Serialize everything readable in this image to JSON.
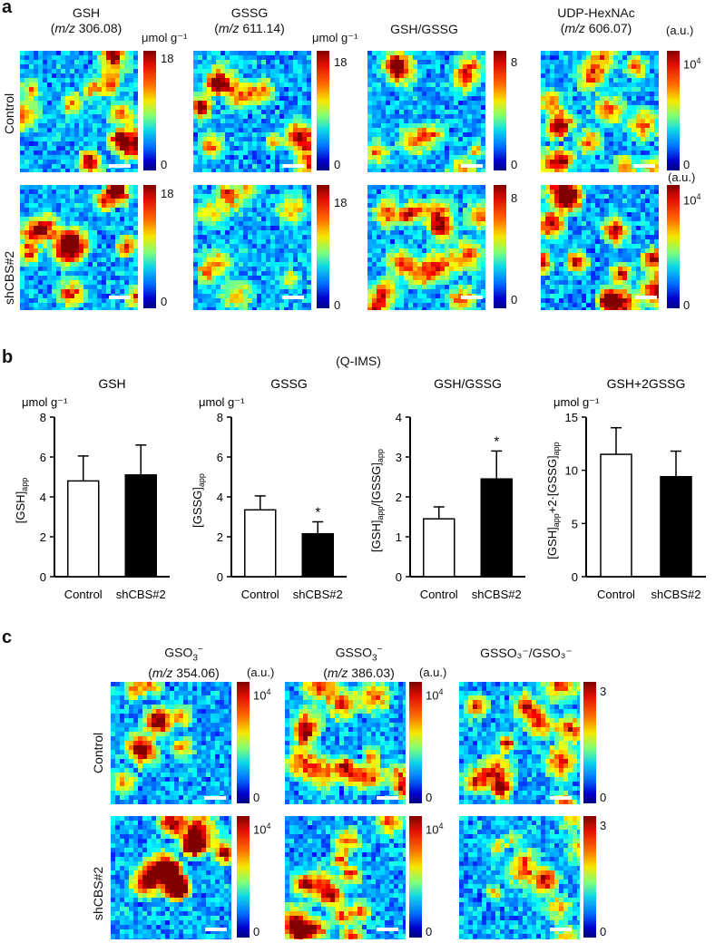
{
  "panel_a": {
    "letter": "a",
    "columns": [
      {
        "title": "GSH",
        "mz": "m/z",
        "mz_val": " 306.08)",
        "unit": "μmol g⁻¹",
        "max": "18",
        "min": "0"
      },
      {
        "title": "GSSG",
        "mz": "m/z",
        "mz_val": " 611.14)",
        "unit": "μmol g⁻¹",
        "max": "18",
        "min": "0"
      },
      {
        "title": "GSH/GSSG",
        "mz": "",
        "mz_val": "",
        "unit": "",
        "max": "8",
        "min": "0"
      },
      {
        "title": "UDP-HexNAc",
        "mz": "m/z",
        "mz_val": " 606.07)",
        "unit": "(a.u.)",
        "max_base": "10",
        "max_exp": "4",
        "min": "0"
      }
    ],
    "rows": [
      "Control",
      "shCBS#2"
    ]
  },
  "panel_b": {
    "letter": "b",
    "header": "(Q-IMS)",
    "xcats": [
      "Control",
      "shCBS#2"
    ]
  },
  "panel_c": {
    "letter": "c",
    "columns": [
      {
        "title_base": "GSO",
        "title_sub": "3",
        "title_sup": "−",
        "mz": "m/z",
        "mz_val": " 354.06)",
        "unit": "(a.u.)",
        "max_base": "10",
        "max_exp": "4",
        "min": "0"
      },
      {
        "title_base": "GSSO",
        "title_sub": "3",
        "title_sup": "−",
        "mz": "m/z",
        "mz_val": " 386.03)",
        "unit": "(a.u.)",
        "max_base": "10",
        "max_exp": "4",
        "min": "0"
      },
      {
        "title_full": "GSSO₃⁻/GSO₃⁻",
        "max": "3",
        "min": "0"
      }
    ],
    "rows": [
      "Control",
      "shCBS#2"
    ]
  },
  "chart_data": [
    {
      "type": "bar",
      "title": "GSH",
      "unit_label": "μmol g⁻¹",
      "ylabel": "[GSH]app",
      "categories": [
        "Control",
        "shCBS#2"
      ],
      "values": [
        4.8,
        5.1
      ],
      "errors": [
        1.25,
        1.5
      ],
      "ylim": [
        0,
        8
      ],
      "yticks": [
        0,
        2,
        4,
        6,
        8
      ],
      "significance": [
        "",
        ""
      ],
      "bar_colors": [
        "#ffffff",
        "#000000"
      ]
    },
    {
      "type": "bar",
      "title": "GSSG",
      "unit_label": "μmol g⁻¹",
      "ylabel": "[GSSG]app",
      "categories": [
        "Control",
        "shCBS#2"
      ],
      "values": [
        3.35,
        2.15
      ],
      "errors": [
        0.7,
        0.6
      ],
      "ylim": [
        0,
        8
      ],
      "yticks": [
        0,
        2,
        4,
        6,
        8
      ],
      "significance": [
        "",
        "*"
      ],
      "bar_colors": [
        "#ffffff",
        "#000000"
      ]
    },
    {
      "type": "bar",
      "title": "GSH/GSSG",
      "unit_label": "",
      "ylabel": "[GSH]app/[GSSG]app",
      "categories": [
        "Control",
        "shCBS#2"
      ],
      "values": [
        1.45,
        2.45
      ],
      "errors": [
        0.3,
        0.7
      ],
      "ylim": [
        0,
        4
      ],
      "yticks": [
        0,
        1,
        2,
        3,
        4
      ],
      "significance": [
        "",
        "*"
      ],
      "bar_colors": [
        "#ffffff",
        "#000000"
      ]
    },
    {
      "type": "bar",
      "title": "GSH+2GSSG",
      "unit_label": "μmol g⁻¹",
      "ylabel": "[GSH]app+2·[GSSG]app",
      "categories": [
        "Control",
        "shCBS#2"
      ],
      "values": [
        11.5,
        9.4
      ],
      "errors": [
        2.5,
        2.4
      ],
      "ylim": [
        0,
        15
      ],
      "yticks": [
        0,
        5,
        10,
        15
      ],
      "significance": [
        "",
        ""
      ],
      "bar_colors": [
        "#ffffff",
        "#000000"
      ]
    }
  ]
}
